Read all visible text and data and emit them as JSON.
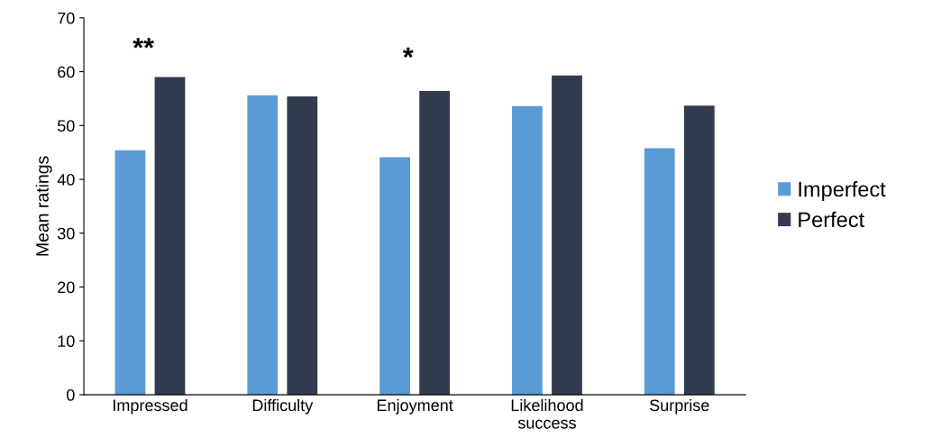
{
  "chart_data": {
    "type": "bar",
    "ylabel": "Mean ratings",
    "categories": [
      "Impressed",
      "Difficulty",
      "Enjoyment",
      "Likelihood\nsuccess",
      "Surprise"
    ],
    "series": [
      {
        "name": "Imperfect",
        "color": "#5b9bd5",
        "values": [
          45.4,
          55.6,
          44.1,
          53.6,
          45.8
        ]
      },
      {
        "name": "Perfect",
        "color": "#323c4e",
        "values": [
          59.0,
          55.4,
          56.4,
          59.3,
          53.7
        ]
      }
    ],
    "ylim": [
      0,
      70
    ],
    "yticks": [
      0,
      10,
      20,
      30,
      40,
      50,
      60,
      70
    ],
    "annotations": [
      "**",
      "*"
    ],
    "legend": "right",
    "grid": false
  }
}
